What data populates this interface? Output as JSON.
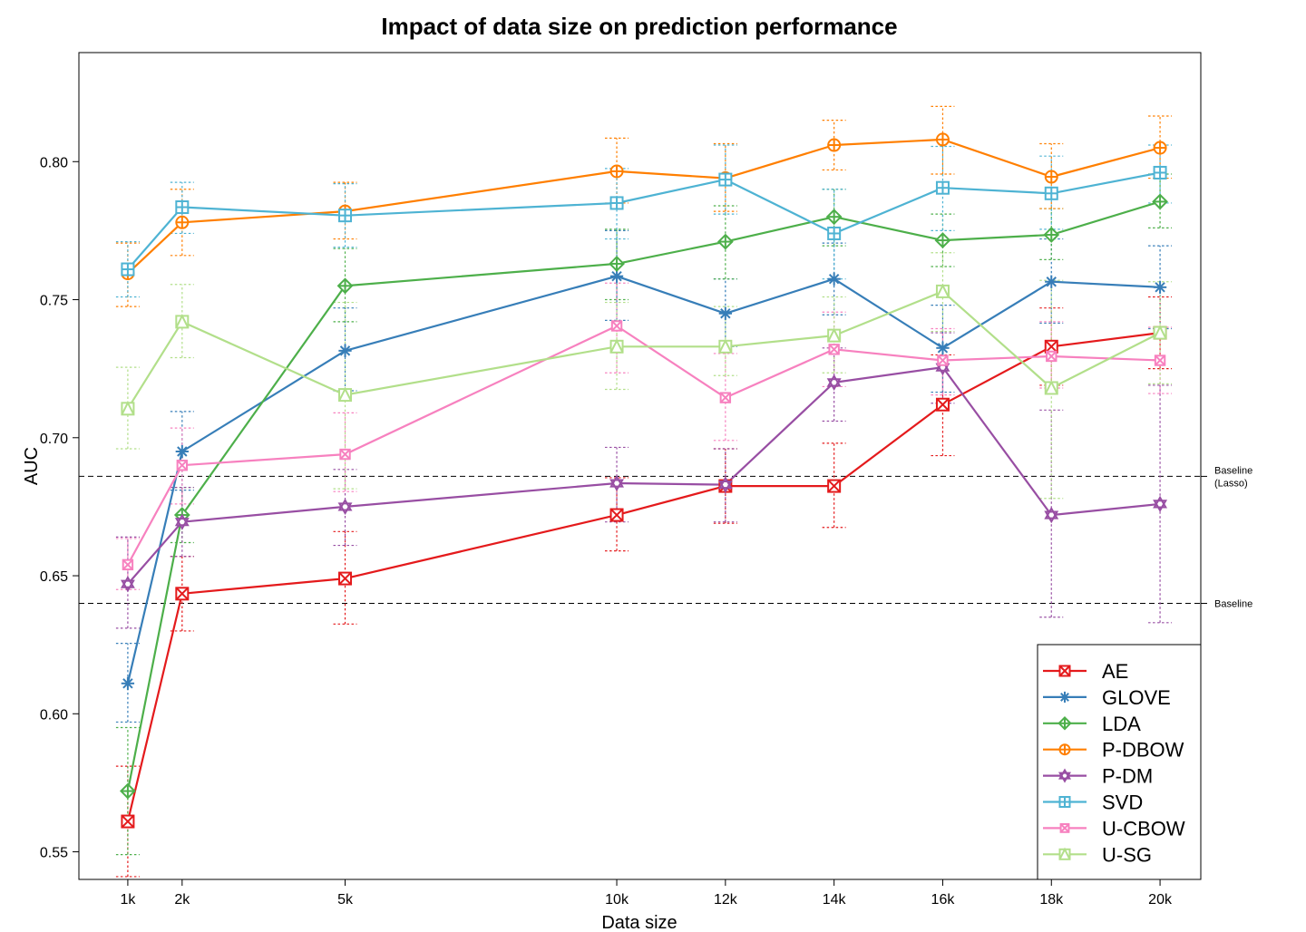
{
  "chart_data": {
    "type": "line",
    "title": "Impact of data size on prediction performance",
    "xlabel": "Data size",
    "ylabel": "AUC",
    "x": [
      1,
      2,
      5,
      10,
      12,
      14,
      16,
      18,
      20
    ],
    "xtick_labels": [
      "1k",
      "2k",
      "5k",
      "10k",
      "12k",
      "14k",
      "16k",
      "18k",
      "20k"
    ],
    "yticks": [
      0.55,
      0.6,
      0.65,
      0.7,
      0.75,
      0.8
    ],
    "ytick_labels": [
      "0.55",
      "0.60",
      "0.65",
      "0.70",
      "0.75",
      "0.80"
    ],
    "xlim": [
      0.1,
      20.75
    ],
    "ylim": [
      0.54,
      0.8395
    ],
    "grid": false,
    "legend_position": "bottom-right",
    "baselines": [
      {
        "label_lines": [
          "Baseline",
          "(Lasso)"
        ],
        "value": 0.686
      },
      {
        "label_lines": [
          "Baseline"
        ],
        "value": 0.64
      }
    ],
    "series": [
      {
        "name": "AE",
        "color": "#e41a1c",
        "marker": "square-x",
        "values": [
          0.561,
          0.6435,
          0.649,
          0.672,
          0.6825,
          0.6825,
          0.712,
          0.733,
          0.738
        ],
        "err_low": [
          0.541,
          0.63,
          0.6325,
          0.659,
          0.669,
          0.6675,
          0.6935,
          0.719,
          0.725
        ],
        "err_high": [
          0.581,
          0.657,
          0.666,
          0.6855,
          0.696,
          0.698,
          0.73,
          0.747,
          0.751
        ]
      },
      {
        "name": "GLOVE",
        "color": "#377eb8",
        "marker": "asterisk",
        "values": [
          0.611,
          0.695,
          0.7315,
          0.7585,
          0.745,
          0.7575,
          0.7325,
          0.7565,
          0.7545
        ],
        "err_low": [
          0.597,
          0.681,
          0.717,
          0.7425,
          0.733,
          0.7445,
          0.7165,
          0.7415,
          0.7395
        ],
        "err_high": [
          0.6255,
          0.7095,
          0.747,
          0.775,
          0.7575,
          0.7705,
          0.748,
          0.772,
          0.7695
        ]
      },
      {
        "name": "LDA",
        "color": "#4daf4a",
        "marker": "diamond-plus",
        "values": [
          0.572,
          0.672,
          0.755,
          0.763,
          0.771,
          0.78,
          0.7715,
          0.7735,
          0.7855
        ],
        "err_low": [
          0.549,
          0.662,
          0.742,
          0.75,
          0.7575,
          0.7695,
          0.762,
          0.7645,
          0.776
        ],
        "err_high": [
          0.595,
          0.682,
          0.7685,
          0.7755,
          0.784,
          0.79,
          0.781,
          0.783,
          0.7955
        ]
      },
      {
        "name": "P-DBOW",
        "color": "#ff7f00",
        "marker": "circle-plus",
        "values": [
          0.7595,
          0.778,
          0.782,
          0.7965,
          0.794,
          0.806,
          0.808,
          0.7945,
          0.805
        ],
        "err_low": [
          0.7475,
          0.766,
          0.772,
          0.785,
          0.782,
          0.797,
          0.7955,
          0.783,
          0.794
        ],
        "err_high": [
          0.7705,
          0.79,
          0.7925,
          0.8085,
          0.8065,
          0.815,
          0.82,
          0.8065,
          0.8165
        ]
      },
      {
        "name": "P-DM",
        "color": "#984ea3",
        "marker": "star-of-david",
        "values": [
          0.647,
          0.6695,
          0.675,
          0.6835,
          0.683,
          0.72,
          0.7255,
          0.672,
          0.676
        ],
        "err_low": [
          0.631,
          0.657,
          0.661,
          0.6695,
          0.6695,
          0.706,
          0.7125,
          0.635,
          0.633
        ],
        "err_high": [
          0.664,
          0.682,
          0.6885,
          0.6965,
          0.696,
          0.7325,
          0.738,
          0.71,
          0.719
        ]
      },
      {
        "name": "SVD",
        "color": "#4eb3d3",
        "marker": "square-plus",
        "values": [
          0.761,
          0.7835,
          0.7805,
          0.785,
          0.7935,
          0.774,
          0.7905,
          0.7885,
          0.796
        ],
        "err_low": [
          0.751,
          0.774,
          0.769,
          0.772,
          0.781,
          0.7575,
          0.775,
          0.7755,
          0.785
        ],
        "err_high": [
          0.771,
          0.7925,
          0.792,
          0.7975,
          0.806,
          0.79,
          0.8055,
          0.802,
          0.806
        ]
      },
      {
        "name": "U-CBOW",
        "color": "#f781bf",
        "marker": "square-x-small",
        "values": [
          0.654,
          0.69,
          0.694,
          0.7405,
          0.7145,
          0.732,
          0.728,
          0.7295,
          0.728
        ],
        "err_low": [
          0.645,
          0.676,
          0.6805,
          0.7235,
          0.699,
          0.7185,
          0.7155,
          0.718,
          0.716
        ],
        "err_high": [
          0.6635,
          0.7035,
          0.709,
          0.756,
          0.7305,
          0.7455,
          0.7395,
          0.742,
          0.74
        ]
      },
      {
        "name": "U-SG",
        "color": "#b2df8a",
        "marker": "square-triangle",
        "values": [
          0.7105,
          0.742,
          0.7155,
          0.733,
          0.733,
          0.737,
          0.753,
          0.718,
          0.738
        ],
        "err_low": [
          0.696,
          0.729,
          0.6815,
          0.7175,
          0.7225,
          0.7235,
          0.7385,
          0.678,
          0.7195
        ],
        "err_high": [
          0.7255,
          0.7555,
          0.749,
          0.749,
          0.7475,
          0.751,
          0.767,
          0.757,
          0.7565
        ]
      }
    ]
  }
}
